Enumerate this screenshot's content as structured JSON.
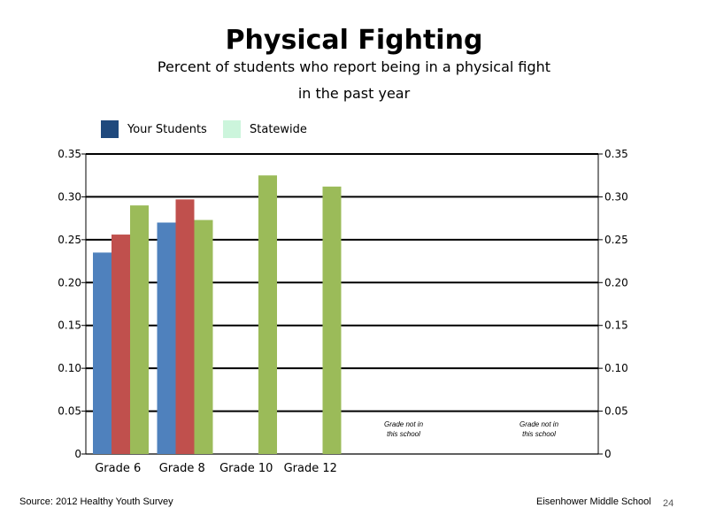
{
  "slide": {
    "title": "Physical Fighting",
    "subtitle_line1": "Percent of students who report being in a physical fight",
    "subtitle_line2": "in the past year",
    "source": "Source: 2012 Healthy Youth Survey",
    "school": "Eisenhower Middle  School",
    "page_number": "24"
  },
  "legend": [
    {
      "label": "Your Students",
      "color": "#1F497D"
    },
    {
      "label": "Statewide",
      "color": "#CCF5DC"
    }
  ],
  "chart_data": {
    "type": "bar",
    "categories": [
      "Grade 6",
      "Grade 8",
      "Grade 10",
      "Grade 12",
      "",
      ""
    ],
    "series": [
      {
        "color": "#4F81BD",
        "values": [
          0.235,
          0.27,
          null,
          null,
          null,
          null
        ]
      },
      {
        "color": "#C0504D",
        "values": [
          0.256,
          0.297,
          null,
          null,
          null,
          null
        ]
      },
      {
        "color": "#9BBB59",
        "values": [
          0.29,
          0.273,
          0.325,
          0.312,
          null,
          null
        ]
      }
    ],
    "annotations": [
      {
        "category_index": 4,
        "text": "Grade not in this school"
      },
      {
        "category_index": 5,
        "text": "Grade not in this school"
      }
    ],
    "ylim": [
      0,
      0.35
    ],
    "yticks": [
      "0",
      "0.05",
      "0.10",
      "0.15",
      "0.20",
      "0.25",
      "0.30",
      "0.35"
    ],
    "grid": true,
    "secondary_y_axis": true,
    "legend_position": "top-left"
  }
}
